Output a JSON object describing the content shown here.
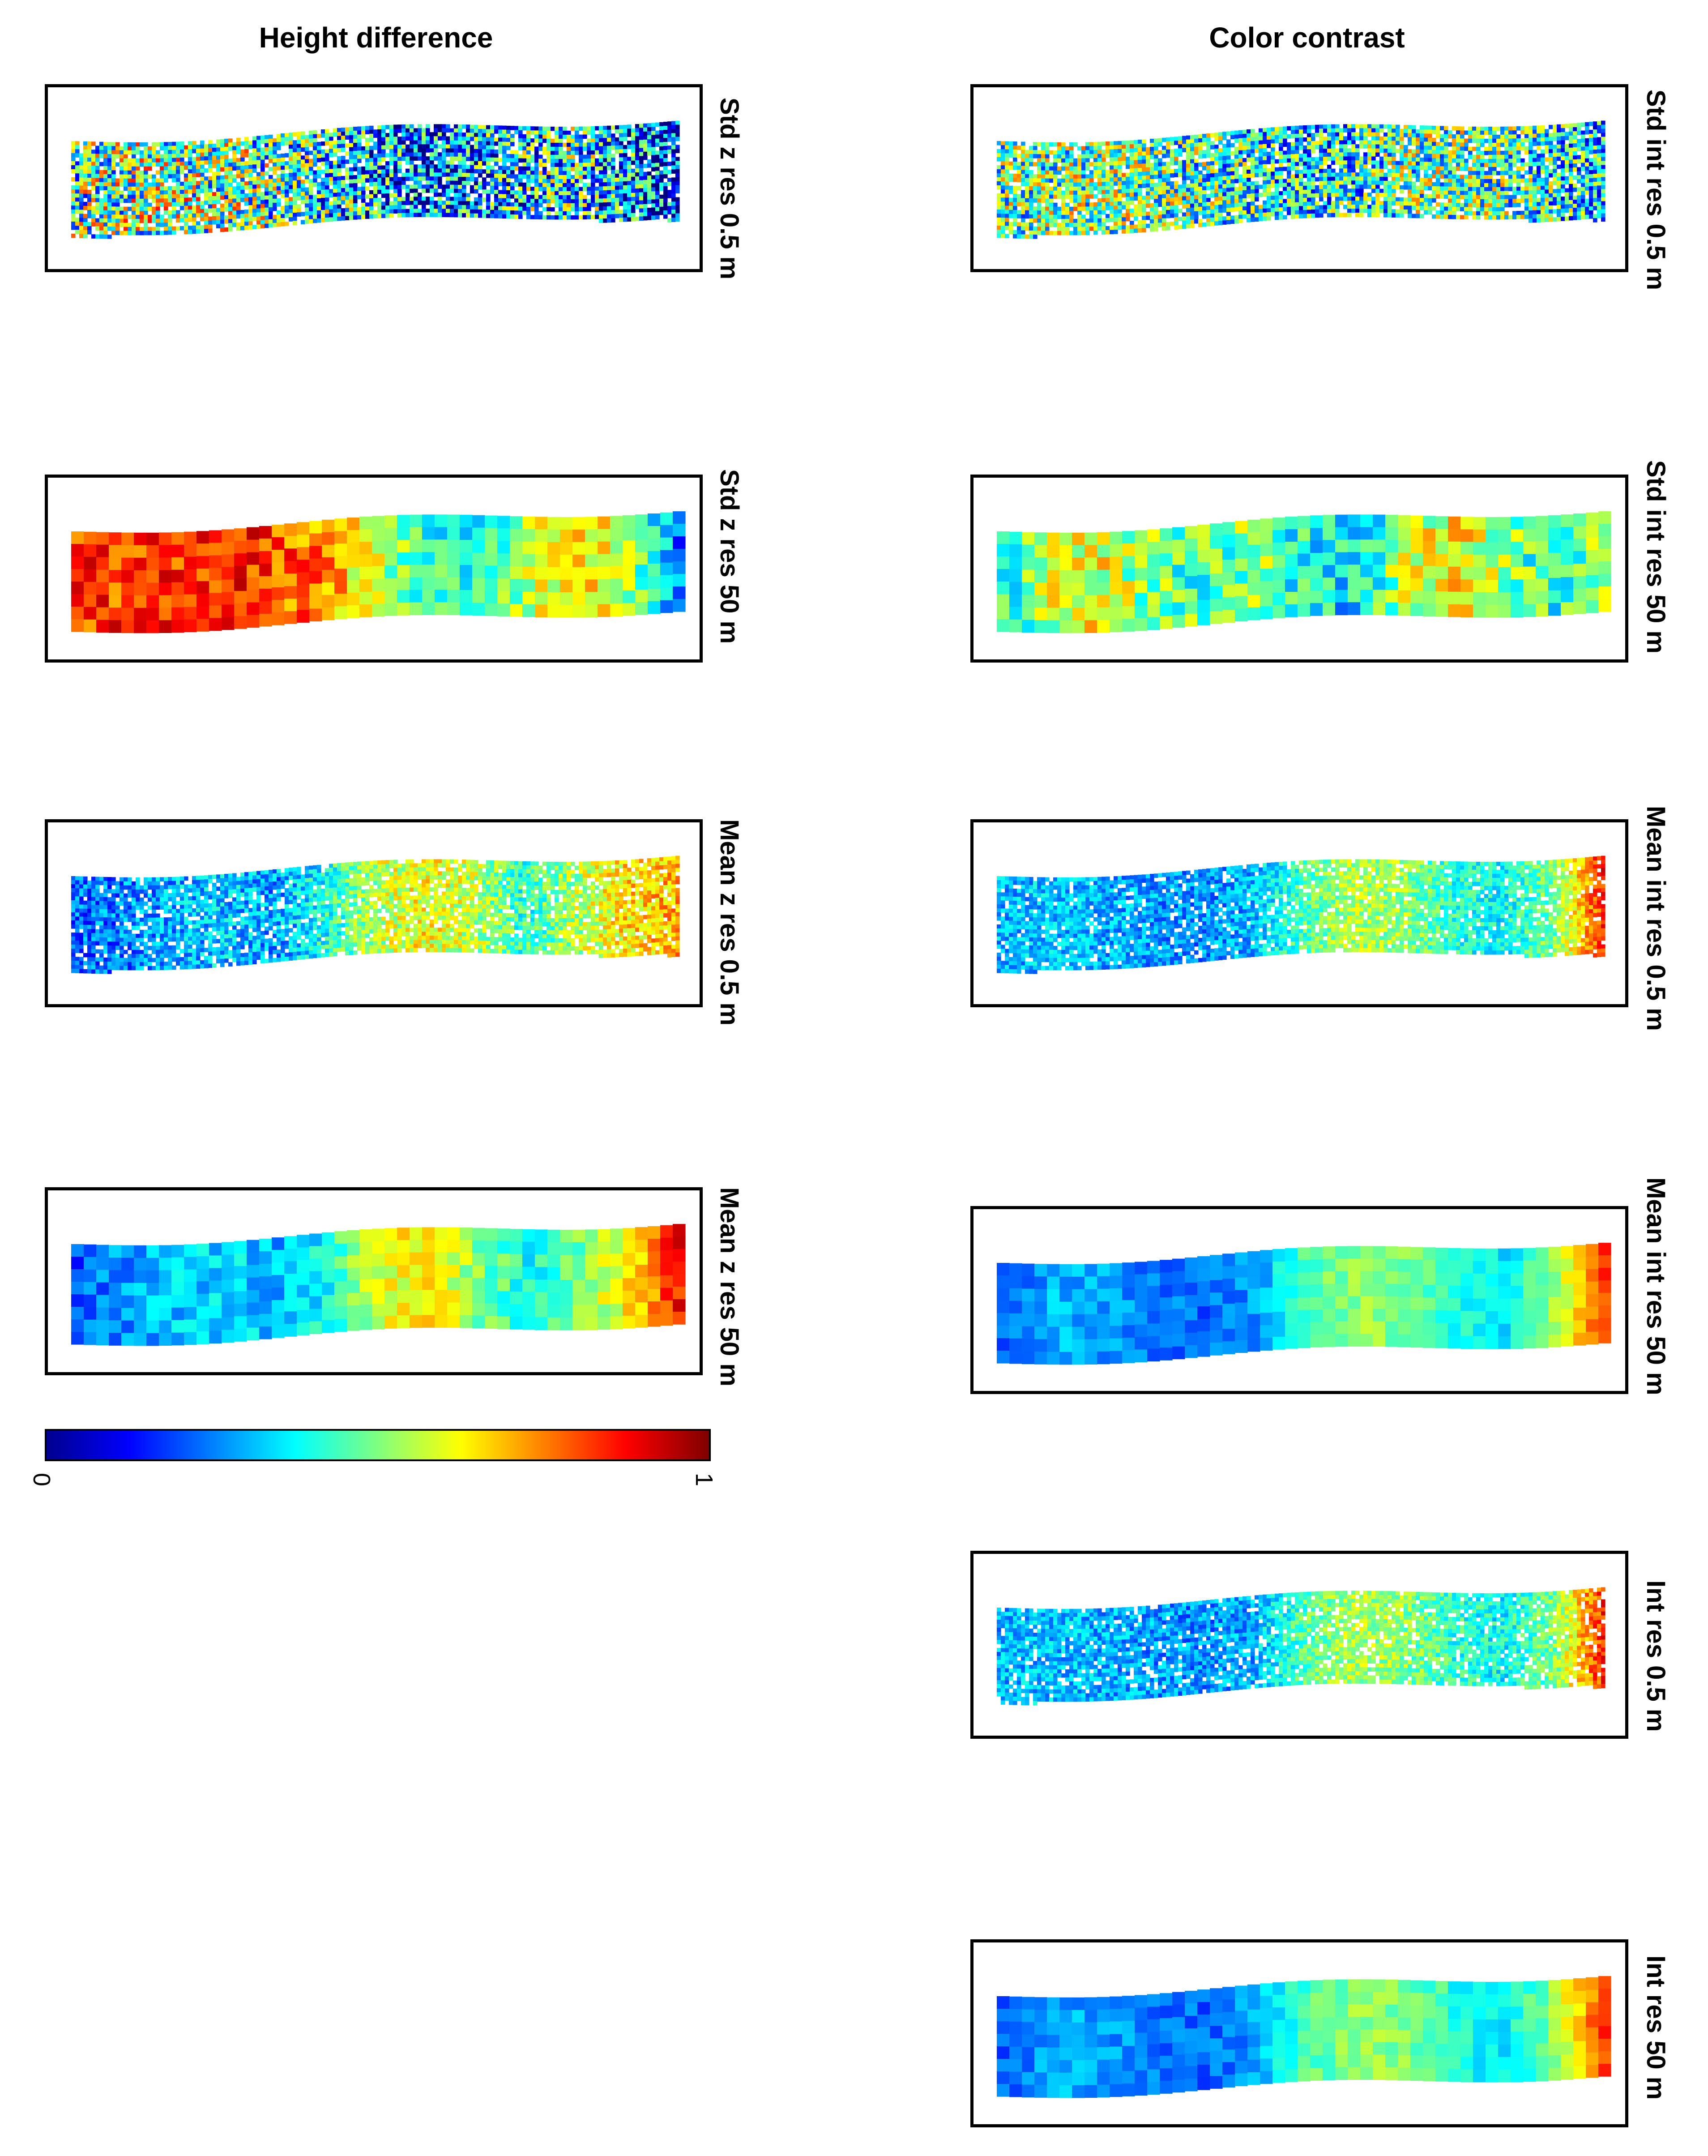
{
  "columns": [
    {
      "title": "Height difference",
      "panels": [
        {
          "label": "Std z res 0.5 m",
          "style": "fine",
          "profile": "stdz"
        },
        {
          "label": "Std z res 50 m",
          "style": "coarse",
          "profile": "stdz50"
        },
        {
          "label": "Mean z res 0.5 m",
          "style": "fine",
          "profile": "meanz"
        },
        {
          "label": "Mean z res 50 m",
          "style": "coarse",
          "profile": "meanz50"
        }
      ]
    },
    {
      "title": "Color contrast",
      "panels": [
        {
          "label": "Std int res 0.5 m",
          "style": "fine",
          "profile": "stdint"
        },
        {
          "label": "Std int res 50 m",
          "style": "coarse",
          "profile": "stdint50"
        },
        {
          "label": "Mean int res 0.5 m",
          "style": "fine",
          "profile": "meanint"
        },
        {
          "label": "Mean int res 50 m",
          "style": "coarse",
          "profile": "meanint50"
        },
        {
          "label": "Int res 0.5 m",
          "style": "fine",
          "profile": "int"
        },
        {
          "label": "Int res 50 m",
          "style": "coarse",
          "profile": "int50"
        }
      ]
    }
  ],
  "colorbar": {
    "min_label": "0",
    "max_label": "1",
    "colormap": "jet",
    "stops": [
      "#00008f",
      "#0000ff",
      "#0080ff",
      "#00ffff",
      "#80ff80",
      "#ffff00",
      "#ff8000",
      "#ff0000",
      "#800000"
    ]
  },
  "profiles": {
    "stdz": {
      "values": [
        0.45,
        0.5,
        0.52,
        0.5,
        0.45,
        0.38,
        0.3,
        0.22,
        0.3,
        0.35,
        0.4,
        0.28,
        0.1
      ],
      "noise": 0.35
    },
    "stdz50": {
      "values": [
        0.82,
        0.82,
        0.84,
        0.85,
        0.8,
        0.72,
        0.55,
        0.42,
        0.4,
        0.55,
        0.68,
        0.5,
        0.22
      ],
      "noise": 0.12
    },
    "meanz": {
      "values": [
        0.22,
        0.25,
        0.3,
        0.32,
        0.28,
        0.4,
        0.55,
        0.62,
        0.55,
        0.42,
        0.55,
        0.65,
        0.7
      ],
      "noise": 0.12
    },
    "meanz50": {
      "values": [
        0.2,
        0.28,
        0.32,
        0.34,
        0.3,
        0.4,
        0.6,
        0.64,
        0.5,
        0.38,
        0.5,
        0.66,
        0.88
      ],
      "noise": 0.08
    },
    "stdint": {
      "values": [
        0.45,
        0.48,
        0.5,
        0.48,
        0.44,
        0.4,
        0.35,
        0.38,
        0.45,
        0.48,
        0.45,
        0.4,
        0.35
      ],
      "noise": 0.3
    },
    "stdint50": {
      "values": [
        0.42,
        0.55,
        0.6,
        0.48,
        0.45,
        0.52,
        0.38,
        0.35,
        0.55,
        0.62,
        0.5,
        0.4,
        0.6
      ],
      "noise": 0.15
    },
    "meanint": {
      "values": [
        0.3,
        0.32,
        0.3,
        0.28,
        0.26,
        0.3,
        0.45,
        0.55,
        0.52,
        0.42,
        0.38,
        0.5,
        0.85
      ],
      "noise": 0.1
    },
    "meanint50": {
      "values": [
        0.22,
        0.3,
        0.28,
        0.25,
        0.22,
        0.28,
        0.45,
        0.52,
        0.5,
        0.4,
        0.36,
        0.55,
        0.85
      ],
      "noise": 0.06
    },
    "int": {
      "values": [
        0.3,
        0.32,
        0.3,
        0.28,
        0.26,
        0.3,
        0.45,
        0.55,
        0.52,
        0.42,
        0.38,
        0.5,
        0.85
      ],
      "noise": 0.1
    },
    "int50": {
      "values": [
        0.22,
        0.3,
        0.28,
        0.25,
        0.22,
        0.28,
        0.45,
        0.52,
        0.5,
        0.4,
        0.36,
        0.55,
        0.85
      ],
      "noise": 0.06
    }
  }
}
